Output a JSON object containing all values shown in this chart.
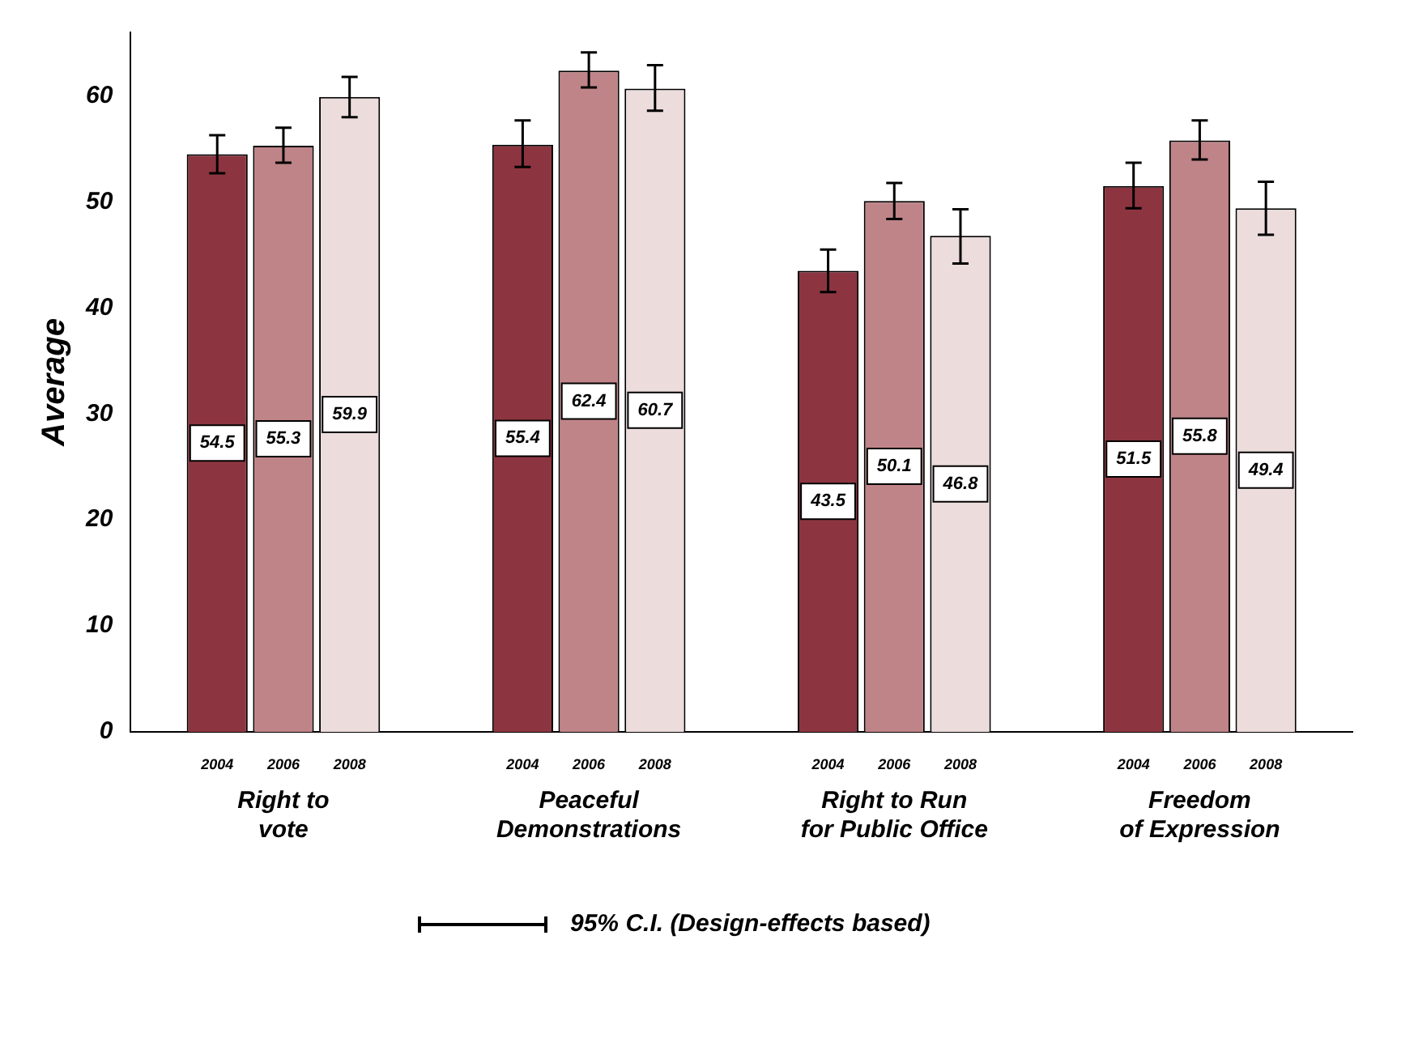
{
  "chart_data": {
    "type": "bar",
    "ylabel": "Average",
    "categories": [
      "Right to\nvote",
      "Peaceful\nDemonstrations",
      "Right to Run\nfor Public Office",
      "Freedom\nof Expression"
    ],
    "series": [
      {
        "name": "2004",
        "color": "#8c3540",
        "values": [
          54.5,
          55.4,
          43.5,
          51.5
        ],
        "errors": [
          [
            52.7,
            56.3
          ],
          [
            53.3,
            57.7
          ],
          [
            41.5,
            45.5
          ],
          [
            49.4,
            53.7
          ]
        ]
      },
      {
        "name": "2006",
        "color": "#bf8488",
        "values": [
          55.3,
          62.4,
          50.1,
          55.8
        ],
        "errors": [
          [
            53.7,
            57.0
          ],
          [
            60.8,
            64.1
          ],
          [
            48.4,
            51.8
          ],
          [
            54.0,
            57.7
          ]
        ]
      },
      {
        "name": "2008",
        "color": "#ecdcdc",
        "values": [
          59.9,
          60.7,
          46.8,
          49.4
        ],
        "errors": [
          [
            58.0,
            61.8
          ],
          [
            58.6,
            62.9
          ],
          [
            44.2,
            49.3
          ],
          [
            46.9,
            51.9
          ]
        ]
      }
    ],
    "ylim": [
      0,
      66
    ],
    "yticks": [
      0,
      10,
      20,
      30,
      40,
      50,
      60
    ],
    "grid": false,
    "legend": false,
    "data_labels": true,
    "annotations": [
      "95% C.I. (Design-effects based)"
    ]
  }
}
